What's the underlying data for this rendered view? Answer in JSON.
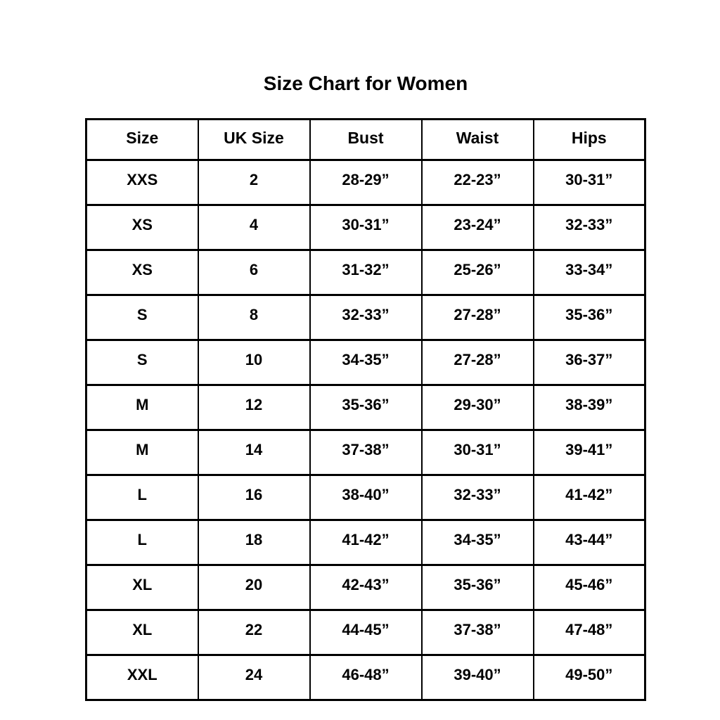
{
  "title": "Size Chart for Women",
  "chart_data": {
    "type": "table",
    "title": "Size Chart for Women",
    "columns": [
      "Size",
      "UK Size",
      "Bust",
      "Waist",
      "Hips"
    ],
    "rows": [
      [
        "XXS",
        "2",
        "28-29”",
        "22-23”",
        "30-31”"
      ],
      [
        "XS",
        "4",
        "30-31”",
        "23-24”",
        "32-33”"
      ],
      [
        "XS",
        "6",
        "31-32”",
        "25-26”",
        "33-34”"
      ],
      [
        "S",
        "8",
        "32-33”",
        "27-28”",
        "35-36”"
      ],
      [
        "S",
        "10",
        "34-35”",
        "27-28”",
        "36-37”"
      ],
      [
        "M",
        "12",
        "35-36”",
        "29-30”",
        "38-39”"
      ],
      [
        "M",
        "14",
        "37-38”",
        "30-31”",
        "39-41”"
      ],
      [
        "L",
        "16",
        "38-40”",
        "32-33”",
        "41-42”"
      ],
      [
        "L",
        "18",
        "41-42”",
        "34-35”",
        "43-44”"
      ],
      [
        "XL",
        "20",
        "42-43”",
        "35-36”",
        "45-46”"
      ],
      [
        "XL",
        "22",
        "44-45”",
        "37-38”",
        "47-48”"
      ],
      [
        "XXL",
        "24",
        "46-48”",
        "39-40”",
        "49-50”"
      ]
    ],
    "layout": {
      "grid": true,
      "border_color": "#000000",
      "background": "#ffffff",
      "text_color": "#000000"
    }
  }
}
